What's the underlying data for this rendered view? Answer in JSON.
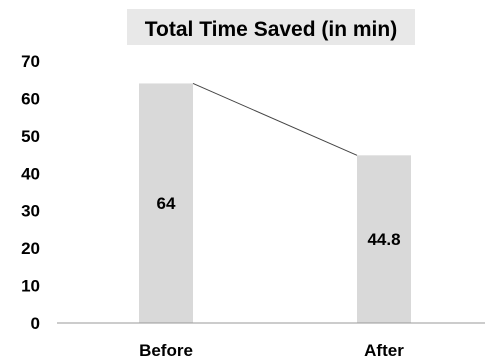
{
  "chart_data": {
    "type": "bar",
    "title": "Total Time Saved (in min)",
    "categories": [
      "Before",
      "After"
    ],
    "values": [
      64,
      44.8
    ],
    "data_labels": [
      "64",
      "44.8"
    ],
    "ylim": [
      0,
      70
    ],
    "yticks": [
      "0",
      "10",
      "20",
      "30",
      "40",
      "50",
      "60",
      "70"
    ],
    "xlabel": "",
    "ylabel": "",
    "grid": false,
    "connector_line": true,
    "colors": {
      "bar": "#d9d9d9",
      "title_background": "#e8e8e8",
      "connector": "#444444"
    }
  }
}
